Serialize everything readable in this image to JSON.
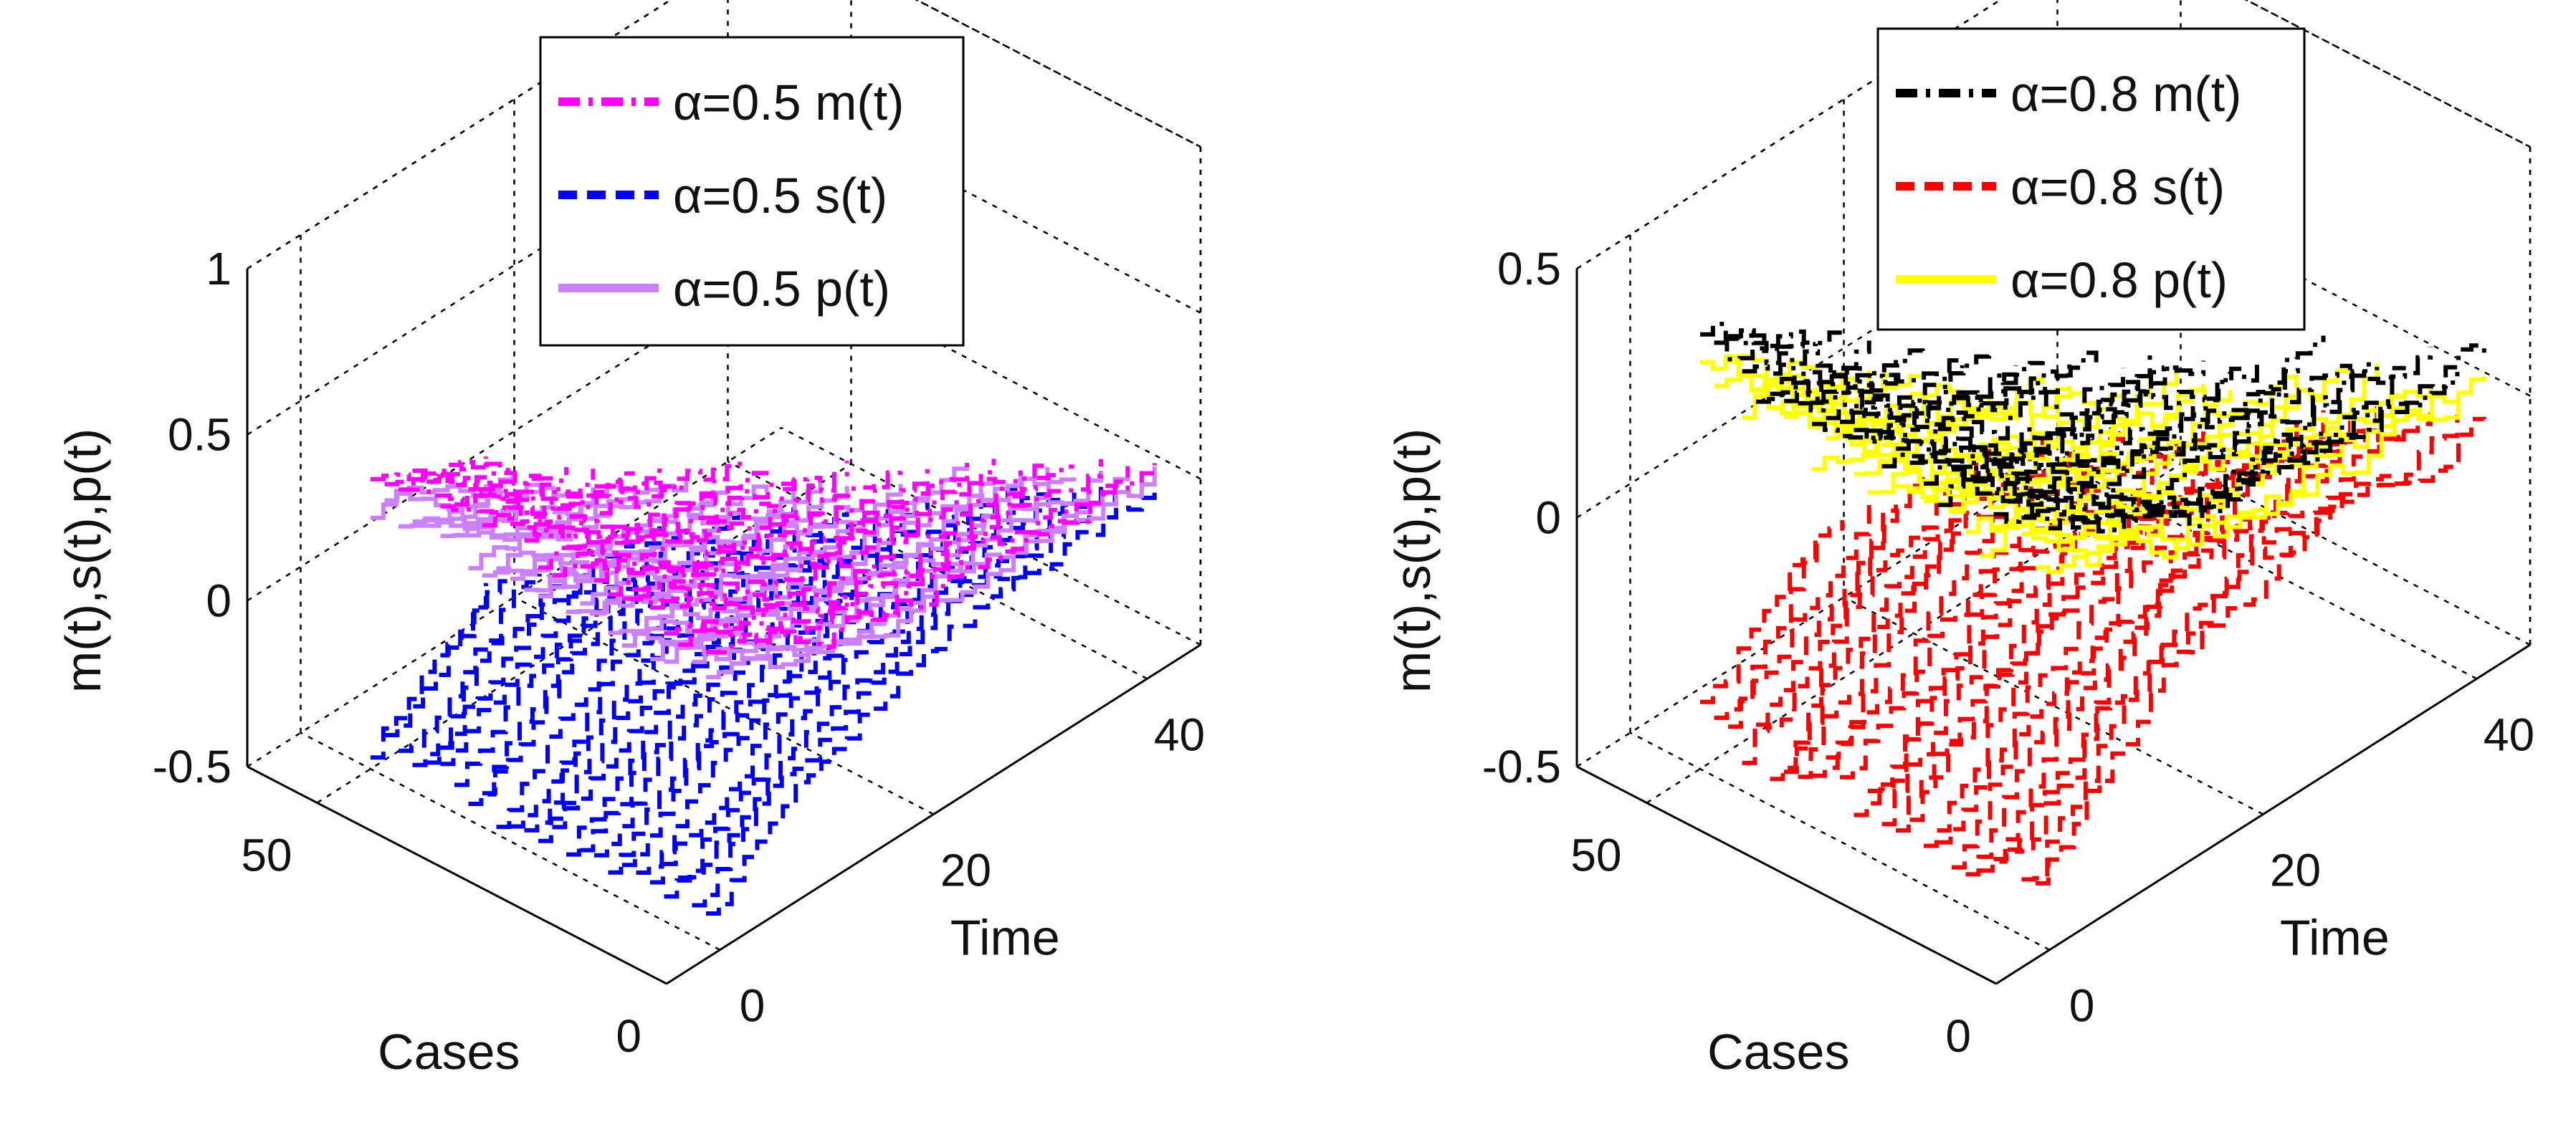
{
  "chart_data": [
    {
      "type": "line",
      "chart": "3d-waterfall",
      "title": "",
      "xlabel": "Time",
      "ylabel": "Cases",
      "zlabel": "m(t),s(t),p(t)",
      "x_ticks": [
        "0",
        "20",
        "40"
      ],
      "y_ticks": [
        "0",
        "50"
      ],
      "z_ticks": [
        "-0.5",
        "0",
        "0.5",
        "1"
      ],
      "xlim": [
        -5,
        45
      ],
      "ylim": [
        0,
        60
      ],
      "zlim": [
        -0.5,
        1
      ],
      "grid": true,
      "legend_position": "top-right",
      "series": [
        {
          "name": "α=0.5 m(t)",
          "color": "#ff00ff",
          "style": "dashdot",
          "start": 0.42,
          "end": 0.08
        },
        {
          "name": "α=0.5 s(t)",
          "color": "#0000ff",
          "style": "dashed",
          "start": -0.42,
          "end": 0.02
        },
        {
          "name": "α=0.5 p(t)",
          "color": "#cc80ff",
          "style": "solid",
          "start": 0.3,
          "end": 0.05
        }
      ]
    },
    {
      "type": "line",
      "chart": "3d-waterfall",
      "title": "",
      "xlabel": "Time",
      "ylabel": "Cases",
      "zlabel": "m(t),s(t),p(t)",
      "x_ticks": [
        "0",
        "20",
        "40"
      ],
      "y_ticks": [
        "0",
        "50"
      ],
      "z_ticks": [
        "-0.5",
        "0",
        "0.5"
      ],
      "xlim": [
        -5,
        45
      ],
      "ylim": [
        0,
        60
      ],
      "zlim": [
        -0.5,
        0.5
      ],
      "grid": true,
      "legend_position": "top-right",
      "series": [
        {
          "name": "α=0.8 m(t)",
          "color": "#000000",
          "style": "dashdot",
          "start": 0.34,
          "end": 0.1
        },
        {
          "name": "α=0.8 s(t)",
          "color": "#ff0000",
          "style": "dashed",
          "start": -0.4,
          "end": 0.0
        },
        {
          "name": "α=0.8 p(t)",
          "color": "#ffff00",
          "style": "solid",
          "start": 0.28,
          "end": 0.06
        }
      ]
    }
  ]
}
